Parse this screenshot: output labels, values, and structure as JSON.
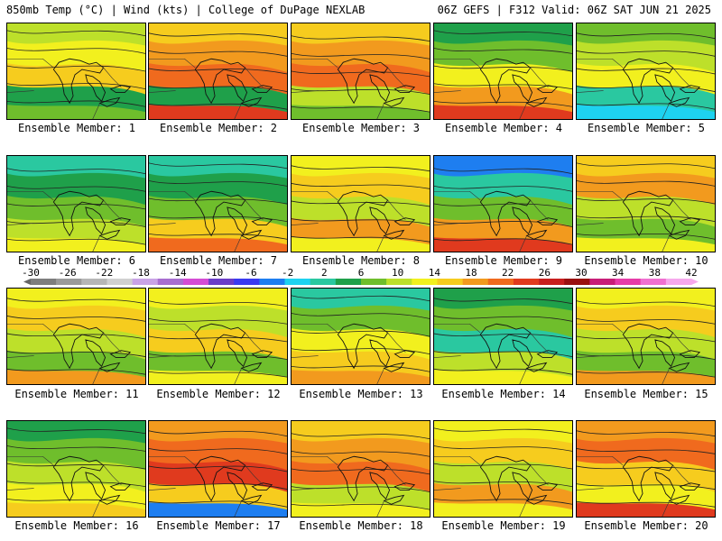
{
  "header": {
    "left": "850mb Temp (°C) | Wind (kts) | College of DuPage NEXLAB",
    "right": "06Z GEFS | F312 Valid: 06Z SAT JUN 21 2025"
  },
  "colorbar": {
    "ticks": [
      "-30",
      "-26",
      "-22",
      "-18",
      "-14",
      "-10",
      "-6",
      "-2",
      "2",
      "6",
      "10",
      "14",
      "18",
      "22",
      "26",
      "30",
      "34",
      "38",
      "42"
    ],
    "colors": [
      "#7e7e7e",
      "#9a9a9a",
      "#b6b6b6",
      "#d0d0d0",
      "#c9a3e6",
      "#a86ed0",
      "#d44cd4",
      "#6a3cc8",
      "#3a3af0",
      "#1e7ef0",
      "#1ed2f0",
      "#2ac8a0",
      "#1fa04a",
      "#6fbe2c",
      "#bde02a",
      "#f2f01e",
      "#f6cc1e",
      "#f29a1e",
      "#f06a1e",
      "#e03a1e",
      "#c81e1e",
      "#9a1010",
      "#c81e78",
      "#e63ca8",
      "#f070d0",
      "#f6a8ec"
    ]
  },
  "members": [
    {
      "label": "Ensemble Member: 1",
      "palette": [
        "#bde02a",
        "#f2f01e",
        "#f6cc1e",
        "#1fa04a",
        "#6fbe2c"
      ]
    },
    {
      "label": "Ensemble Member: 2",
      "palette": [
        "#f6cc1e",
        "#f29a1e",
        "#f06a1e",
        "#1fa04a",
        "#e03a1e"
      ]
    },
    {
      "label": "Ensemble Member: 3",
      "palette": [
        "#f6cc1e",
        "#f29a1e",
        "#f06a1e",
        "#bde02a",
        "#6fbe2c"
      ]
    },
    {
      "label": "Ensemble Member: 4",
      "palette": [
        "#1fa04a",
        "#6fbe2c",
        "#f2f01e",
        "#f29a1e",
        "#e03a1e"
      ]
    },
    {
      "label": "Ensemble Member: 5",
      "palette": [
        "#6fbe2c",
        "#bde02a",
        "#f2f01e",
        "#2ac8a0",
        "#1ed2f0"
      ]
    },
    {
      "label": "Ensemble Member: 6",
      "palette": [
        "#2ac8a0",
        "#1fa04a",
        "#6fbe2c",
        "#bde02a",
        "#f2f01e"
      ]
    },
    {
      "label": "Ensemble Member: 7",
      "palette": [
        "#2ac8a0",
        "#1fa04a",
        "#6fbe2c",
        "#f6cc1e",
        "#f06a1e"
      ]
    },
    {
      "label": "Ensemble Member: 8",
      "palette": [
        "#f2f01e",
        "#f6cc1e",
        "#bde02a",
        "#f29a1e",
        "#f2f01e"
      ]
    },
    {
      "label": "Ensemble Member: 9",
      "palette": [
        "#1e7ef0",
        "#2ac8a0",
        "#6fbe2c",
        "#f29a1e",
        "#e03a1e"
      ]
    },
    {
      "label": "Ensemble Member: 10",
      "palette": [
        "#f6cc1e",
        "#f29a1e",
        "#bde02a",
        "#6fbe2c",
        "#f2f01e"
      ]
    },
    {
      "label": "Ensemble Member: 11",
      "palette": [
        "#f2f01e",
        "#f6cc1e",
        "#bde02a",
        "#6fbe2c",
        "#f29a1e"
      ]
    },
    {
      "label": "Ensemble Member: 12",
      "palette": [
        "#f2f01e",
        "#bde02a",
        "#f6cc1e",
        "#6fbe2c",
        "#f2f01e"
      ]
    },
    {
      "label": "Ensemble Member: 13",
      "palette": [
        "#2ac8a0",
        "#6fbe2c",
        "#f2f01e",
        "#f6cc1e",
        "#f29a1e"
      ]
    },
    {
      "label": "Ensemble Member: 14",
      "palette": [
        "#1fa04a",
        "#6fbe2c",
        "#2ac8a0",
        "#bde02a",
        "#f2f01e"
      ]
    },
    {
      "label": "Ensemble Member: 15",
      "palette": [
        "#f2f01e",
        "#f6cc1e",
        "#bde02a",
        "#6fbe2c",
        "#f29a1e"
      ]
    },
    {
      "label": "Ensemble Member: 16",
      "palette": [
        "#1fa04a",
        "#6fbe2c",
        "#bde02a",
        "#f2f01e",
        "#f6cc1e"
      ]
    },
    {
      "label": "Ensemble Member: 17",
      "palette": [
        "#f29a1e",
        "#f06a1e",
        "#e03a1e",
        "#f6cc1e",
        "#1e7ef0"
      ]
    },
    {
      "label": "Ensemble Member: 18",
      "palette": [
        "#f6cc1e",
        "#f29a1e",
        "#f06a1e",
        "#bde02a",
        "#f2f01e"
      ]
    },
    {
      "label": "Ensemble Member: 19",
      "palette": [
        "#f2f01e",
        "#f6cc1e",
        "#bde02a",
        "#f29a1e",
        "#f2f01e"
      ]
    },
    {
      "label": "Ensemble Member: 20",
      "palette": [
        "#f29a1e",
        "#f06a1e",
        "#f6cc1e",
        "#f2f01e",
        "#e03a1e"
      ]
    }
  ]
}
